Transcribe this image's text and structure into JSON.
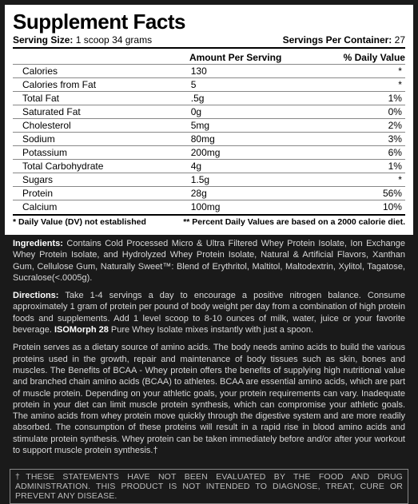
{
  "panel": {
    "title": "Supplement Facts",
    "serving_size_label": "Serving Size:",
    "serving_size_value": "1 scoop 34 grams",
    "servings_per_label": "Servings Per Container:",
    "servings_per_value": "27",
    "col_amount": "Amount Per Serving",
    "col_dv": "% Daily Value",
    "rows": [
      {
        "name": "Calories",
        "amount": "130",
        "dv": "*"
      },
      {
        "name": "Calories from Fat",
        "amount": "5",
        "dv": "*"
      },
      {
        "name": "Total Fat",
        "amount": ".5g",
        "dv": "1%"
      },
      {
        "name": "Saturated Fat",
        "amount": "0g",
        "dv": "0%"
      },
      {
        "name": "Cholesterol",
        "amount": "5mg",
        "dv": "2%"
      },
      {
        "name": "Sodium",
        "amount": "80mg",
        "dv": "3%"
      },
      {
        "name": "Potassium",
        "amount": "200mg",
        "dv": "6%"
      },
      {
        "name": "Total Carbohydrate",
        "amount": "4g",
        "dv": "1%"
      },
      {
        "name": "Sugars",
        "amount": "1.5g",
        "dv": "*"
      },
      {
        "name": "Protein",
        "amount": "28g",
        "dv": "56%"
      },
      {
        "name": "Calcium",
        "amount": "100mg",
        "dv": "10%"
      }
    ],
    "footnote_left": "* Daily Value (DV) not established",
    "footnote_right": "** Percent Daily Values are based on a 2000 calorie diet."
  },
  "ingredients_label": "Ingredients:",
  "ingredients_text": " Contains Cold Processed Micro & Ultra Filtered Whey Protein Isolate, Ion Exchange Whey Protein Isolate, and Hydrolyzed Whey Protein Isolate, Natural & Artificial Flavors, Xanthan Gum, Cellulose Gum, Naturally Sweet™: Blend of Erythritol, Maltitol, Maltodextrin, Xylitol, Tagatose, Sucralose(<.0005g).",
  "directions_label": "Directions:",
  "directions_text_a": " Take 1-4 servings a day to encourage a positive nitrogen balance. Consume approximately 1 gram of protein per pound of body weight per day from a combination of high protein foods and supplements. Add 1 level scoop to 8-10 ounces of milk, water, juice or your favorite beverage. ",
  "directions_bold": "ISOMorph 28",
  "directions_text_b": " Pure Whey Isolate mixes instantly with just a spoon.",
  "body_text": "Protein serves as a dietary source of amino acids. The body needs amino acids to build the various proteins used in the growth, repair and maintenance of body tissues such as skin, bones and muscles. The Benefits of BCAA - Whey protein offers the benefits of supplying high nutritional value and branched chain amino acids (BCAA) to athletes. BCAA are essential amino acids, which are part of muscle protein. Depending on your athletic goals, your protein requirements can vary. Inadequate protein in your diet can limit muscle protein synthesis, which can compromise your athletic goals. The amino acids from whey protein move quickly through the digestive system and are more readily absorbed. The consumption of these proteins will result in a rapid rise in blood amino acids and stimulate protein synthesis. Whey protein can be taken immediately before and/or after your workout to support muscle protein synthesis.†",
  "disclaimer": "†THESE STATEMENTS HAVE NOT BEEN EVALUATED BY THE FOOD AND DRUG ADMINISTRATION. THIS PRODUCT IS NOT INTENDED TO DIAGNOSE, TREAT, CURE OR PREVENT ANY DISEASE."
}
